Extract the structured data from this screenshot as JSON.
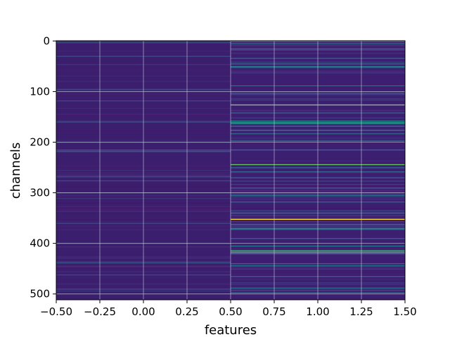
{
  "chart_data": {
    "type": "heatmap",
    "xlabel": "features",
    "ylabel": "channels",
    "xlim": [
      -0.5,
      1.5
    ],
    "ylim": [
      511.5,
      -0.5
    ],
    "x_ticks": [
      -0.5,
      -0.25,
      0.0,
      0.25,
      0.5,
      0.75,
      1.0,
      1.25,
      1.5
    ],
    "x_tick_labels": [
      "−0.50",
      "−0.25",
      "0.00",
      "0.25",
      "0.50",
      "0.75",
      "1.00",
      "1.25",
      "1.50"
    ],
    "y_ticks": [
      0,
      100,
      200,
      300,
      400,
      500
    ],
    "y_tick_labels": [
      "0",
      "100",
      "200",
      "300",
      "400",
      "500"
    ],
    "columns": [
      0,
      1
    ],
    "n_rows": 512,
    "colormap": "viridis",
    "grid": true,
    "grid_color": "#c8c8dc",
    "base_colors": {
      "column_0": "#3b1f6e",
      "column_1": "#3c1f70"
    },
    "bright_rows": {
      "column_0": [
        {
          "row": 3,
          "value": 0.3
        },
        {
          "row": 30,
          "value": 0.28
        },
        {
          "row": 96,
          "value": 0.3
        },
        {
          "row": 118,
          "value": 0.26
        },
        {
          "row": 160,
          "value": 0.32
        },
        {
          "row": 200,
          "value": 0.3
        },
        {
          "row": 215,
          "value": 0.3
        },
        {
          "row": 218,
          "value": 0.34
        },
        {
          "row": 268,
          "value": 0.33
        },
        {
          "row": 276,
          "value": 0.28
        },
        {
          "row": 300,
          "value": 0.25
        },
        {
          "row": 360,
          "value": 0.27
        },
        {
          "row": 400,
          "value": 0.28
        },
        {
          "row": 438,
          "value": 0.32
        },
        {
          "row": 462,
          "value": 0.26
        },
        {
          "row": 490,
          "value": 0.28
        }
      ],
      "column_1": [
        {
          "row": 1,
          "value": 0.45
        },
        {
          "row": 5,
          "value": 0.4
        },
        {
          "row": 15,
          "value": 0.35
        },
        {
          "row": 34,
          "value": 0.4
        },
        {
          "row": 45,
          "value": 0.45
        },
        {
          "row": 50,
          "value": 0.5
        },
        {
          "row": 52,
          "value": 0.4
        },
        {
          "row": 88,
          "value": 0.4
        },
        {
          "row": 104,
          "value": 0.35
        },
        {
          "row": 126,
          "value": 0.85
        },
        {
          "row": 142,
          "value": 0.4
        },
        {
          "row": 158,
          "value": 0.6
        },
        {
          "row": 161,
          "value": 0.65
        },
        {
          "row": 163,
          "value": 0.6
        },
        {
          "row": 168,
          "value": 0.5
        },
        {
          "row": 176,
          "value": 0.55
        },
        {
          "row": 183,
          "value": 0.4
        },
        {
          "row": 197,
          "value": 0.35
        },
        {
          "row": 215,
          "value": 0.45
        },
        {
          "row": 244,
          "value": 0.82
        },
        {
          "row": 250,
          "value": 0.4
        },
        {
          "row": 258,
          "value": 0.4
        },
        {
          "row": 270,
          "value": 0.4
        },
        {
          "row": 290,
          "value": 0.35
        },
        {
          "row": 305,
          "value": 0.45
        },
        {
          "row": 318,
          "value": 0.4
        },
        {
          "row": 340,
          "value": 0.4
        },
        {
          "row": 352,
          "value": 1.0
        },
        {
          "row": 362,
          "value": 0.5
        },
        {
          "row": 370,
          "value": 0.55
        },
        {
          "row": 372,
          "value": 0.5
        },
        {
          "row": 390,
          "value": 0.4
        },
        {
          "row": 405,
          "value": 0.5
        },
        {
          "row": 414,
          "value": 0.75
        },
        {
          "row": 417,
          "value": 0.8
        },
        {
          "row": 420,
          "value": 0.65
        },
        {
          "row": 440,
          "value": 0.45
        },
        {
          "row": 444,
          "value": 0.5
        },
        {
          "row": 465,
          "value": 0.4
        },
        {
          "row": 488,
          "value": 0.45
        },
        {
          "row": 497,
          "value": 0.4
        }
      ]
    }
  }
}
